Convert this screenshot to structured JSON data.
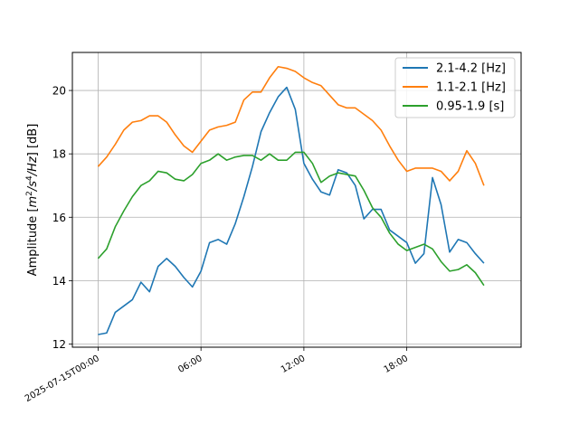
{
  "chart_data": {
    "type": "line",
    "title": "",
    "xlabel": "",
    "ylabel": "Amplitude [m²/s⁴/Hz] [dB]",
    "x_tick_labels": [
      "2025-07-15T00:00",
      "06:00",
      "12:00",
      "18:00"
    ],
    "x_ticks": [
      "2025-07-15T00:00",
      "2025-07-15T06:00",
      "2025-07-15T12:00",
      "2025-07-15T18:00"
    ],
    "y_ticks": [
      12,
      14,
      16,
      18,
      20
    ],
    "xlim": [
      "2025-07-14T22:30",
      "2025-07-16T00:40"
    ],
    "ylim": [
      11.9,
      21.2
    ],
    "grid": true,
    "legend_position": "top-right",
    "x": [
      "2025-07-15T00:00",
      "2025-07-15T00:30",
      "2025-07-15T01:00",
      "2025-07-15T01:30",
      "2025-07-15T02:00",
      "2025-07-15T02:30",
      "2025-07-15T03:00",
      "2025-07-15T03:30",
      "2025-07-15T04:00",
      "2025-07-15T04:30",
      "2025-07-15T05:00",
      "2025-07-15T05:30",
      "2025-07-15T06:00",
      "2025-07-15T06:30",
      "2025-07-15T07:00",
      "2025-07-15T07:30",
      "2025-07-15T08:00",
      "2025-07-15T08:30",
      "2025-07-15T09:00",
      "2025-07-15T09:30",
      "2025-07-15T10:00",
      "2025-07-15T10:30",
      "2025-07-15T11:00",
      "2025-07-15T11:30",
      "2025-07-15T12:00",
      "2025-07-15T12:30",
      "2025-07-15T13:00",
      "2025-07-15T13:30",
      "2025-07-15T14:00",
      "2025-07-15T14:30",
      "2025-07-15T15:00",
      "2025-07-15T15:30",
      "2025-07-15T16:00",
      "2025-07-15T16:30",
      "2025-07-15T17:00",
      "2025-07-15T17:30",
      "2025-07-15T18:00",
      "2025-07-15T18:30",
      "2025-07-15T19:00",
      "2025-07-15T19:30",
      "2025-07-15T20:00",
      "2025-07-15T20:30",
      "2025-07-15T21:00",
      "2025-07-15T21:30",
      "2025-07-15T22:00",
      "2025-07-15T22:30"
    ],
    "series": [
      {
        "name": "2.1-4.2 [Hz]",
        "color": "#1f77b4",
        "values": [
          12.3,
          12.35,
          13.0,
          13.2,
          13.4,
          13.95,
          13.65,
          14.45,
          14.7,
          14.45,
          14.1,
          13.8,
          14.3,
          15.2,
          15.3,
          15.15,
          15.8,
          16.65,
          17.6,
          18.7,
          19.3,
          19.8,
          20.1,
          19.4,
          17.7,
          17.2,
          16.8,
          16.7,
          17.5,
          17.4,
          17.0,
          15.95,
          16.25,
          16.25,
          15.6,
          15.4,
          15.2,
          14.55,
          14.85,
          17.25,
          16.4,
          14.9,
          15.3,
          15.2,
          14.85,
          14.55
        ]
      },
      {
        "name": "1.1-2.1 [Hz]",
        "color": "#ff7f0e",
        "values": [
          17.6,
          17.9,
          18.3,
          18.75,
          19.0,
          19.05,
          19.2,
          19.2,
          19.0,
          18.6,
          18.25,
          18.05,
          18.4,
          18.75,
          18.85,
          18.9,
          19.0,
          19.7,
          19.95,
          19.95,
          20.4,
          20.75,
          20.7,
          20.6,
          20.4,
          20.25,
          20.15,
          19.85,
          19.55,
          19.45,
          19.45,
          19.25,
          19.05,
          18.75,
          18.25,
          17.8,
          17.45,
          17.55,
          17.55,
          17.55,
          17.45,
          17.15,
          17.45,
          18.1,
          17.7,
          17.0
        ]
      },
      {
        "name": "0.95-1.9 [s]",
        "color": "#2ca02c",
        "values": [
          14.7,
          15.0,
          15.7,
          16.2,
          16.65,
          17.0,
          17.15,
          17.45,
          17.4,
          17.2,
          17.15,
          17.35,
          17.7,
          17.8,
          18.0,
          17.8,
          17.9,
          17.95,
          17.95,
          17.8,
          18.0,
          17.8,
          17.8,
          18.05,
          18.05,
          17.7,
          17.1,
          17.3,
          17.4,
          17.35,
          17.3,
          16.85,
          16.3,
          16.0,
          15.5,
          15.15,
          14.95,
          15.05,
          15.15,
          15.0,
          14.6,
          14.3,
          14.35,
          14.5,
          14.25,
          13.85
        ]
      }
    ]
  }
}
